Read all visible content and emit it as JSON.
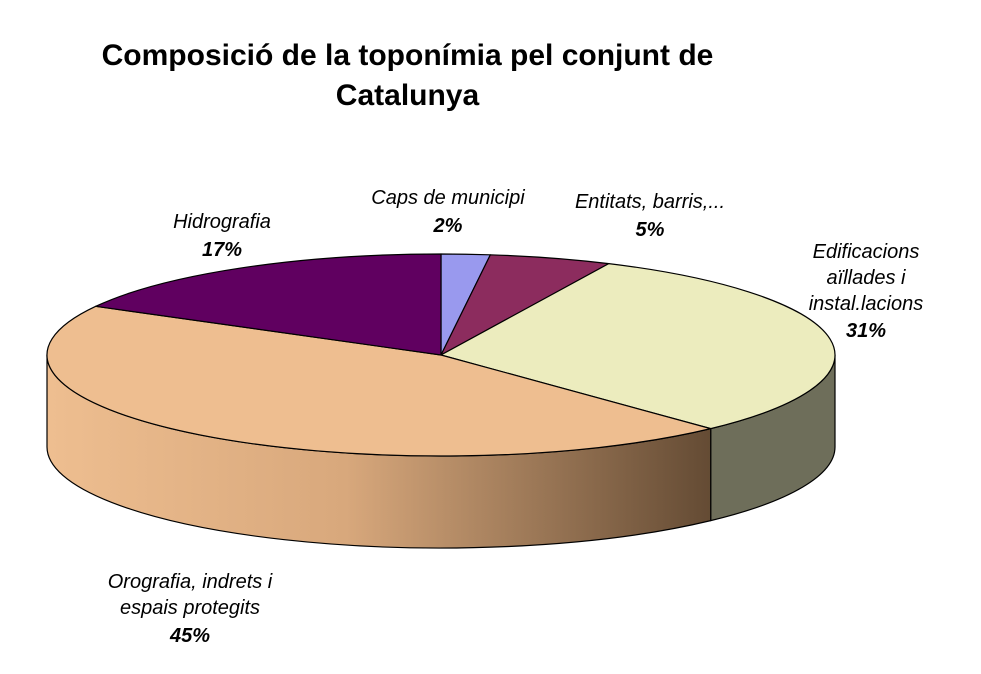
{
  "chart_data": {
    "type": "pie",
    "title": [
      "Composició de la toponímia pel conjunt de",
      "Catalunya"
    ],
    "slices": [
      {
        "label": [
          "Caps de municipi"
        ],
        "percent_label": "2%",
        "value": 2,
        "color": "#9999ee",
        "side_color": "#6b6bb0"
      },
      {
        "label": [
          "Entitats, barris,..."
        ],
        "percent_label": "5%",
        "value": 5,
        "color": "#8c2c5e",
        "side_color": "#5e1d3f"
      },
      {
        "label": [
          "Edificacions",
          "aïllades i",
          "instal.lacions"
        ],
        "percent_label": "31%",
        "value": 31,
        "color": "#ececbe",
        "side_color": "#6e6e5a"
      },
      {
        "label": [
          "Orografia, indrets i",
          "espais protegits"
        ],
        "percent_label": "45%",
        "value": 45,
        "color": "#eebe90",
        "side_color": "#b08862"
      },
      {
        "label": [
          "Hidrografia"
        ],
        "percent_label": "17%",
        "value": 17,
        "color": "#600060",
        "side_color": "#400040"
      }
    ]
  }
}
